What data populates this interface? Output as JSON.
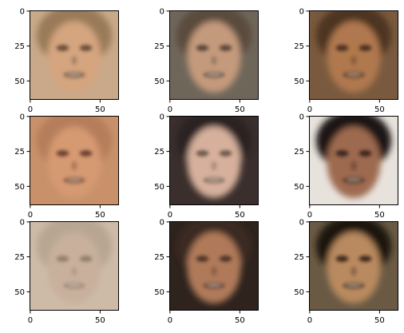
{
  "chart_data": {
    "type": "image-grid",
    "rows": 3,
    "cols": 3,
    "xlim": [
      -0.5,
      63.5
    ],
    "ylim": [
      63.5,
      -0.5
    ],
    "xticks": [
      0,
      50
    ],
    "yticks": [
      0,
      25,
      50
    ],
    "panels": [
      {
        "subject": "blurry face, light hair, smiling",
        "colors": {
          "bg": "#c9a98a",
          "hair": "#9a7a58",
          "skin": "#d4a57f",
          "dark": "#5a3f2e"
        }
      },
      {
        "subject": "blurry face, dark hair",
        "colors": {
          "bg": "#6f665a",
          "hair": "#5a4b3c",
          "skin": "#c49a7c",
          "dark": "#4a3a30"
        }
      },
      {
        "subject": "blurry face, warm brown tones",
        "colors": {
          "bg": "#7a5a3e",
          "hair": "#4e3524",
          "skin": "#b0784f",
          "dark": "#3a2417"
        }
      },
      {
        "subject": "blurry face, smiling, light hair",
        "colors": {
          "bg": "#c8916a",
          "hair": "#b57e5a",
          "skin": "#d59a72",
          "dark": "#5a3326"
        }
      },
      {
        "subject": "blurry face, older person",
        "colors": {
          "bg": "#3a2f2c",
          "hair": "#2c2422",
          "skin": "#d6b09c",
          "dark": "#5e4a40"
        }
      },
      {
        "subject": "blurry face, dark hair, turned",
        "colors": {
          "bg": "#e8e2dc",
          "hair": "#1e1614",
          "skin": "#9d6a50",
          "dark": "#2a1a14"
        }
      },
      {
        "subject": "very blurry pale face",
        "colors": {
          "bg": "#cdbba8",
          "hair": "#b7a692",
          "skin": "#c8b09c",
          "dark": "#8a7664"
        }
      },
      {
        "subject": "blurry face, dark hair",
        "colors": {
          "bg": "#2e231d",
          "hair": "#3a2a20",
          "skin": "#b07a5a",
          "dark": "#3e2a1f"
        }
      },
      {
        "subject": "blurry face, dark hair, open mouth",
        "colors": {
          "bg": "#6a5a44",
          "hair": "#1c1410",
          "skin": "#b98a5e",
          "dark": "#2a1a10"
        }
      }
    ]
  }
}
